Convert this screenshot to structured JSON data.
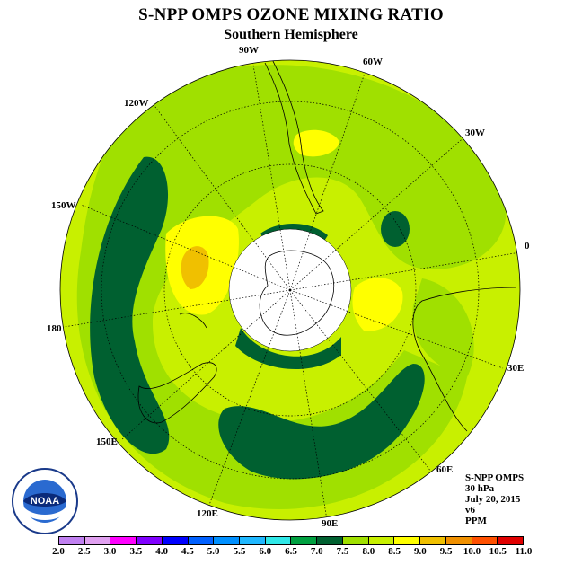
{
  "title": "S-NPP OMPS OZONE MIXING RATIO",
  "subtitle": "Southern Hemisphere",
  "longitude_labels": [
    "90W",
    "60W",
    "30W",
    "0",
    "30E",
    "60E",
    "90E",
    "120E",
    "150E",
    "180",
    "150W",
    "120W"
  ],
  "info": {
    "instrument": "S-NPP OMPS",
    "level": "30 hPa",
    "date": "July 20, 2015",
    "version": "v6",
    "units": "PPM"
  },
  "logo_text": "NOAA",
  "colorbar": {
    "labels": [
      "2.0",
      "2.5",
      "3.0",
      "3.5",
      "4.0",
      "4.5",
      "5.0",
      "5.5",
      "6.0",
      "6.5",
      "7.0",
      "7.5",
      "8.0",
      "8.5",
      "9.0",
      "9.5",
      "10.0",
      "10.5",
      "11.0"
    ],
    "colors": [
      "#c080f0",
      "#e0a0f0",
      "#ff00ff",
      "#8000ff",
      "#0000ff",
      "#0060ff",
      "#0090ff",
      "#20b8ff",
      "#30e8e8",
      "#00a040",
      "#006030",
      "#a0e000",
      "#c8f000",
      "#ffff00",
      "#f0c000",
      "#f09000",
      "#ff5000",
      "#e00000",
      "#806040"
    ]
  },
  "colors": {
    "dark_green": "#006030",
    "mid_green": "#009a40",
    "yellow_green": "#a0e000",
    "lime": "#c8f000",
    "yellow": "#ffff00",
    "orange": "#f0c000"
  }
}
